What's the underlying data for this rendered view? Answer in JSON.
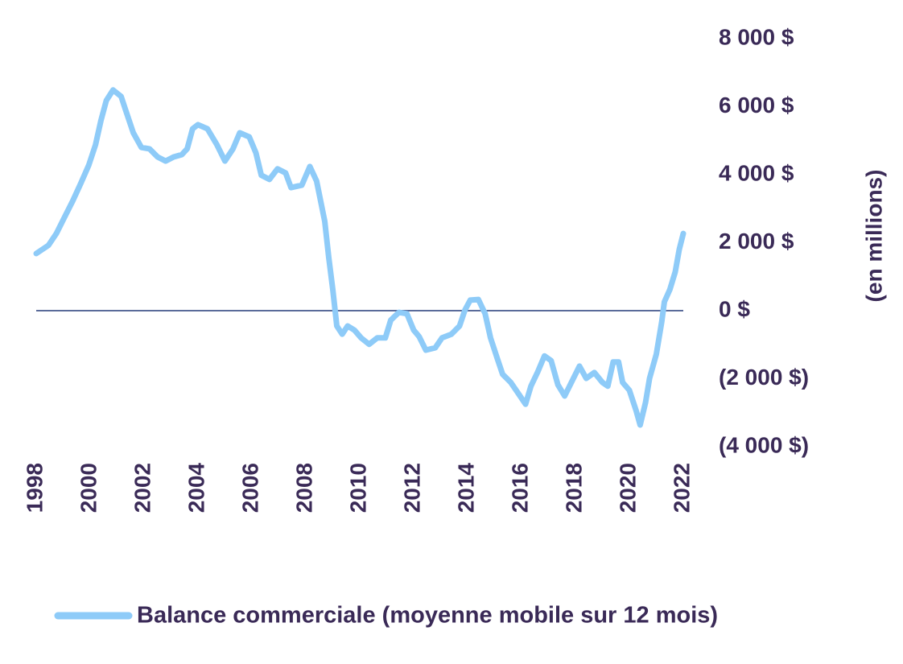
{
  "chart_data": {
    "type": "line",
    "y_axis_label": "(en millions)",
    "xlim": [
      1998,
      2022
    ],
    "xticks": [
      1998,
      2000,
      2002,
      2004,
      2006,
      2008,
      2010,
      2012,
      2014,
      2016,
      2018,
      2020,
      2022
    ],
    "ylim": [
      -4000,
      8000
    ],
    "yticks": [
      {
        "value": -4000,
        "label": "(4 000 $)"
      },
      {
        "value": -2000,
        "label": "(2 000 $)"
      },
      {
        "value": 0,
        "label": "0 $"
      },
      {
        "value": 2000,
        "label": "2 000 $"
      },
      {
        "value": 4000,
        "label": "4 000 $"
      },
      {
        "value": 6000,
        "label": "6 000 $"
      },
      {
        "value": 8000,
        "label": "8 000 $"
      }
    ],
    "zero_line": true,
    "series": [
      {
        "name": "Balance commerciale (moyenne mobile sur 12 mois)",
        "color": "#8ecbf8",
        "x": [
          1998.0,
          1998.45,
          1998.75,
          1999.05,
          1999.35,
          1999.65,
          1999.95,
          2000.2,
          2000.4,
          2000.6,
          2000.85,
          2001.15,
          2001.3,
          2001.6,
          2001.9,
          2002.2,
          2002.5,
          2002.8,
          2003.1,
          2003.4,
          2003.6,
          2003.8,
          2004.0,
          2004.35,
          2004.7,
          2005.0,
          2005.3,
          2005.55,
          2005.9,
          2006.15,
          2006.35,
          2006.65,
          2006.95,
          2007.25,
          2007.45,
          2007.85,
          2008.15,
          2008.4,
          2008.7,
          2008.85,
          2009.0,
          2009.15,
          2009.35,
          2009.55,
          2009.8,
          2010.05,
          2010.35,
          2010.65,
          2010.95,
          2011.15,
          2011.45,
          2011.75,
          2012.0,
          2012.2,
          2012.45,
          2012.8,
          2013.05,
          2013.4,
          2013.7,
          2013.9,
          2014.1,
          2014.4,
          2014.65,
          2014.85,
          2015.1,
          2015.3,
          2015.6,
          2015.9,
          2016.15,
          2016.35,
          2016.6,
          2016.85,
          2017.1,
          2017.35,
          2017.6,
          2017.85,
          2018.15,
          2018.4,
          2018.7,
          2019.0,
          2019.2,
          2019.4,
          2019.6,
          2019.75,
          2020.0,
          2020.25,
          2020.4,
          2020.6,
          2020.75,
          2021.0,
          2021.2,
          2021.3,
          2021.5,
          2021.7,
          2021.85,
          2022.0
        ],
        "values": [
          1680,
          1920,
          2270,
          2750,
          3220,
          3740,
          4280,
          4880,
          5590,
          6180,
          6490,
          6300,
          5940,
          5230,
          4800,
          4760,
          4520,
          4400,
          4520,
          4590,
          4760,
          5350,
          5470,
          5350,
          4880,
          4400,
          4760,
          5230,
          5110,
          4640,
          3980,
          3860,
          4170,
          4050,
          3620,
          3690,
          4240,
          3810,
          2630,
          1560,
          620,
          -450,
          -690,
          -450,
          -570,
          -800,
          -990,
          -800,
          -800,
          -280,
          -50,
          -90,
          -570,
          -760,
          -1160,
          -1090,
          -800,
          -690,
          -450,
          20,
          310,
          330,
          -90,
          -800,
          -1400,
          -1870,
          -2110,
          -2460,
          -2750,
          -2220,
          -1800,
          -1330,
          -1470,
          -2180,
          -2510,
          -2110,
          -1630,
          -1990,
          -1820,
          -2110,
          -2220,
          -1510,
          -1510,
          -2110,
          -2340,
          -2940,
          -3360,
          -2700,
          -1990,
          -1280,
          -330,
          260,
          620,
          1140,
          1800,
          2270
        ]
      }
    ]
  }
}
